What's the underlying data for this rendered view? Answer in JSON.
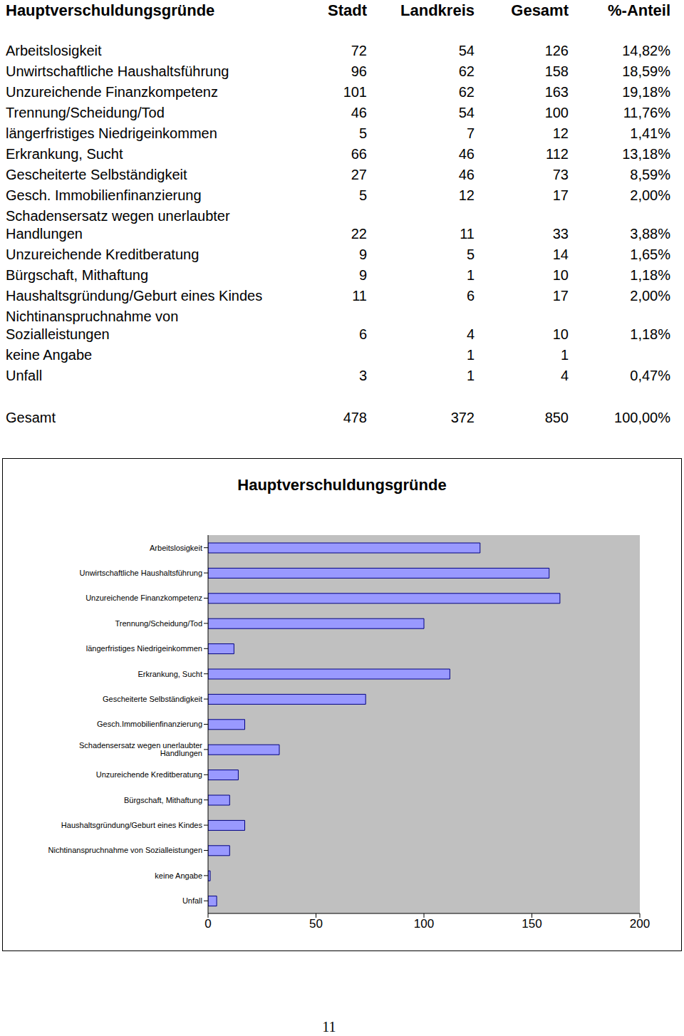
{
  "table": {
    "header": [
      "Hauptverschuldungsgründe",
      "Stadt",
      "Landkreis",
      "Gesamt",
      "%-Anteil"
    ],
    "rows": [
      [
        "Arbeitslosigkeit",
        "72",
        "54",
        "126",
        "14,82%"
      ],
      [
        "Unwirtschaftliche Haushaltsführung",
        "96",
        "62",
        "158",
        "18,59%"
      ],
      [
        "Unzureichende Finanzkompetenz",
        "101",
        "62",
        "163",
        "19,18%"
      ],
      [
        "Trennung/Scheidung/Tod",
        "46",
        "54",
        "100",
        "11,76%"
      ],
      [
        "längerfristiges Niedrigeinkommen",
        "5",
        "7",
        "12",
        "1,41%"
      ],
      [
        "Erkrankung, Sucht",
        "66",
        "46",
        "112",
        "13,18%"
      ],
      [
        "Gescheiterte Selbständigkeit",
        "27",
        "46",
        "73",
        "8,59%"
      ],
      [
        "Gesch. Immobilienfinanzierung",
        "5",
        "12",
        "17",
        "2,00%"
      ],
      [
        "Schadensersatz wegen unerlaubter Handlungen",
        "22",
        "11",
        "33",
        "3,88%"
      ],
      [
        "Unzureichende Kreditberatung",
        "9",
        "5",
        "14",
        "1,65%"
      ],
      [
        "Bürgschaft, Mithaftung",
        "9",
        "1",
        "10",
        "1,18%"
      ],
      [
        "Haushaltsgründung/Geburt eines Kindes",
        "11",
        "6",
        "17",
        "2,00%"
      ],
      [
        "Nichtinanspruchnahme von Sozialleistungen",
        "6",
        "4",
        "10",
        "1,18%"
      ],
      [
        "keine Angabe",
        null,
        "1",
        "1",
        null
      ],
      [
        "Unfall",
        "3",
        "1",
        "4",
        "0,47%"
      ]
    ],
    "total": [
      "Gesamt",
      "478",
      "372",
      "850",
      "100,00%"
    ]
  },
  "chart_data": {
    "type": "bar",
    "orientation": "horizontal",
    "title": "Hauptverschuldungsgründe",
    "categories": [
      "Arbeitslosigkeit",
      "Unwirtschaftliche Haushaltsführung",
      "Unzureichende Finanzkompetenz",
      "Trennung/Scheidung/Tod",
      "längerfristiges Niedrigeinkommen",
      "Erkrankung, Sucht",
      "Gescheiterte Selbständigkeit",
      "Gesch.Immobilienfinanzierung",
      "Schadensersatz wegen unerlaubter Handlungen",
      "Unzureichende Kreditberatung",
      "Bürgschaft, Mithaftung",
      "Haushaltsgründung/Geburt eines Kindes",
      "Nichtinanspruchnahme von Sozialleistungen",
      "keine Angabe",
      "Unfall"
    ],
    "values": [
      126,
      158,
      163,
      100,
      12,
      112,
      73,
      17,
      33,
      14,
      10,
      17,
      10,
      1,
      4
    ],
    "color": "#9999ff",
    "xlim": [
      0,
      200
    ],
    "xticks": [
      0,
      50,
      100,
      150,
      200
    ],
    "grid": false
  },
  "page_number": "11"
}
